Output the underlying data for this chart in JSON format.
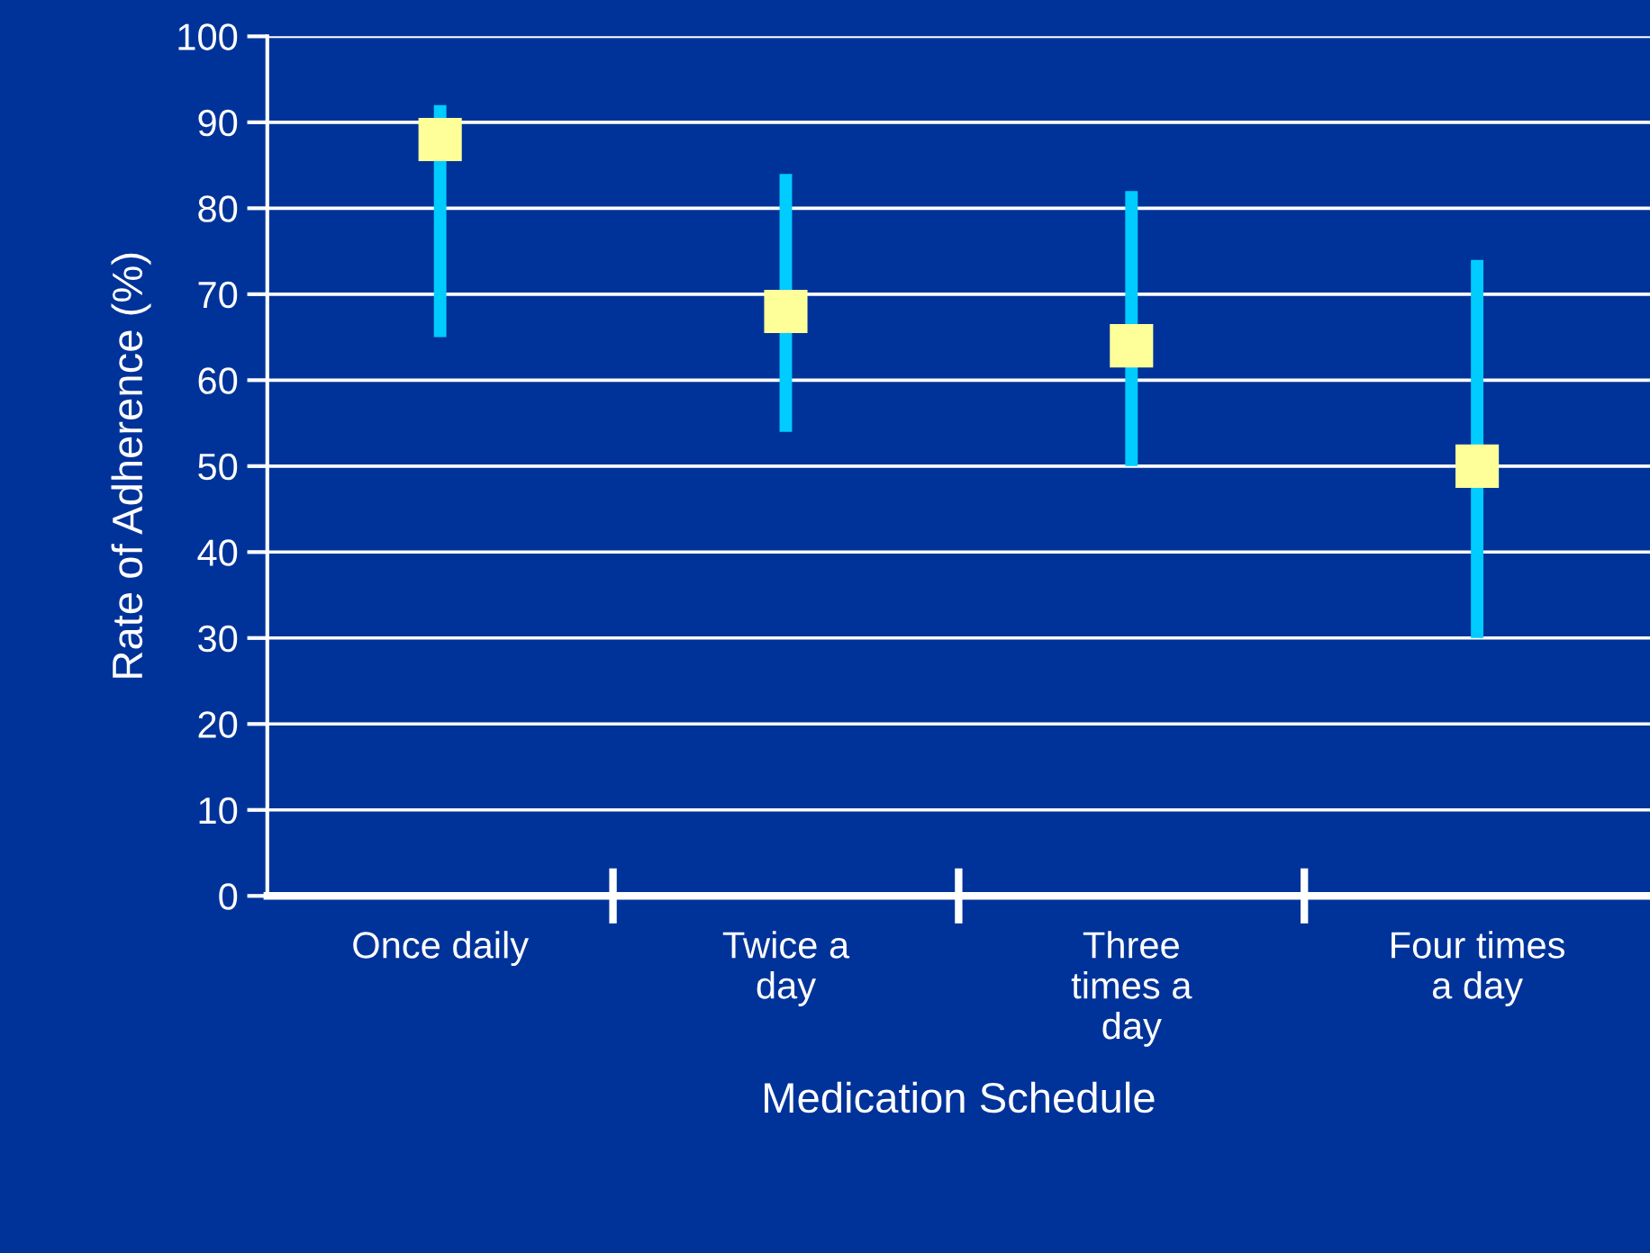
{
  "chart_data": {
    "type": "scatter",
    "xlabel": "Medication Schedule",
    "ylabel": "Rate of Adherence (%)",
    "categories": [
      "Once daily",
      "Twice a\nday",
      "Three\ntimes a\nday",
      "Four times\na day"
    ],
    "values": [
      88,
      68,
      64,
      50
    ],
    "errors": [
      [
        65,
        92
      ],
      [
        54,
        84
      ],
      [
        50,
        82
      ],
      [
        30,
        74
      ]
    ],
    "color": "#ffff99",
    "marker": "square",
    "ylim": [
      0,
      100
    ],
    "yticks": [
      0,
      10,
      20,
      30,
      40,
      50,
      60,
      70,
      80,
      90,
      100
    ],
    "grid": "y"
  }
}
